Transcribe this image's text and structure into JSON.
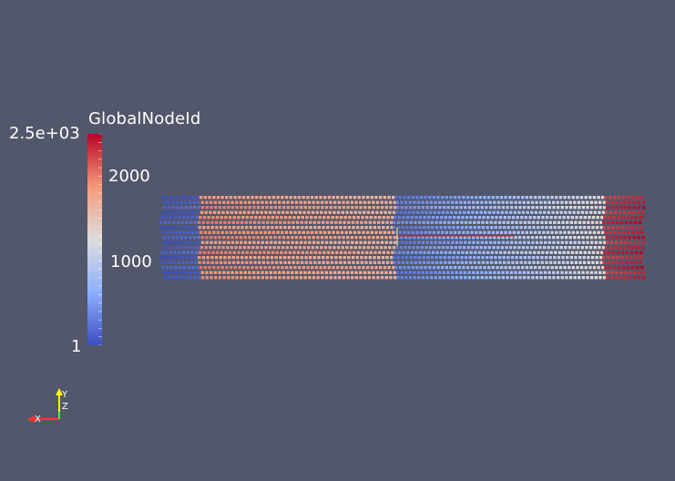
{
  "colorbar": {
    "title": "GlobalNodeId",
    "max_label": "2.5e+03",
    "mid_label_high": "2000",
    "mid_label_low": "1000",
    "min_label": "1",
    "range": [
      1,
      2500
    ],
    "colors": {
      "low": "#3b4cc0",
      "mid": "#dddddd",
      "high": "#b40426"
    }
  },
  "orientation_axes": {
    "x_label": "X",
    "y_label": "Y",
    "z_label": "Z",
    "x_color": "#ff3333",
    "y_color": "#ffff00",
    "z_color": "#33ff33"
  },
  "background_color": "#52576b"
}
